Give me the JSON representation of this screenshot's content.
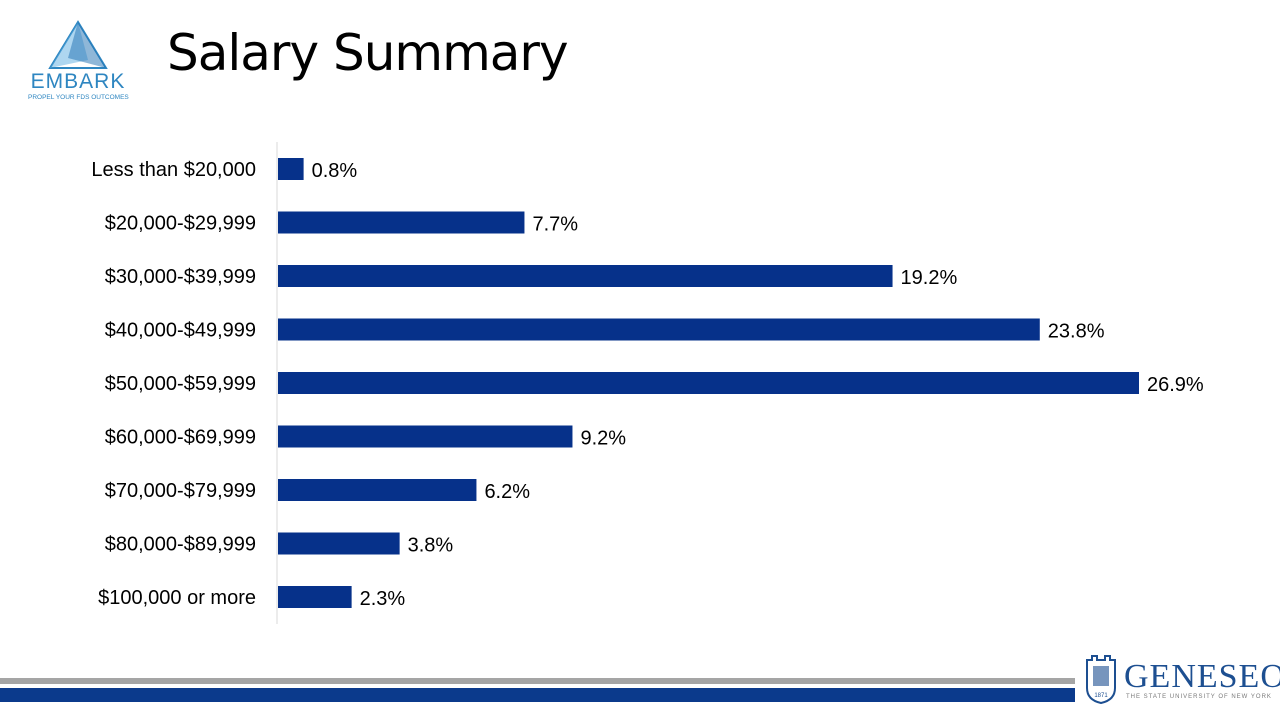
{
  "header": {
    "title": "Salary Summary"
  },
  "logos": {
    "embark": {
      "word": "EMBARK",
      "tagline": "PROPEL YOUR FDS OUTCOMES"
    },
    "geneseo": {
      "name": "GENESEO",
      "subtitle": "THE STATE UNIVERSITY OF NEW YORK",
      "seal_year": "1871"
    }
  },
  "colors": {
    "bar": "#06318a",
    "accent_gray": "#a5a5a5",
    "accent_blue": "#0b3a8c"
  },
  "chart_data": {
    "type": "bar",
    "orientation": "horizontal",
    "title": "",
    "xlabel": "",
    "ylabel": "",
    "categories": [
      "Less than $20,000",
      "$20,000-$29,999",
      "$30,000-$39,999",
      "$40,000-$49,999",
      "$50,000-$59,999",
      "$60,000-$69,999",
      "$70,000-$79,999",
      "$80,000-$89,999",
      "$100,000 or more"
    ],
    "values": [
      0.8,
      7.7,
      19.2,
      23.8,
      26.9,
      9.2,
      6.2,
      3.8,
      2.3
    ],
    "data_labels": [
      "0.8%",
      "7.7%",
      "19.2%",
      "23.8%",
      "26.9%",
      "9.2%",
      "6.2%",
      "3.8%",
      "2.3%"
    ],
    "value_unit": "%",
    "xlim": [
      0,
      26.9
    ],
    "grid": false,
    "legend": "none"
  }
}
